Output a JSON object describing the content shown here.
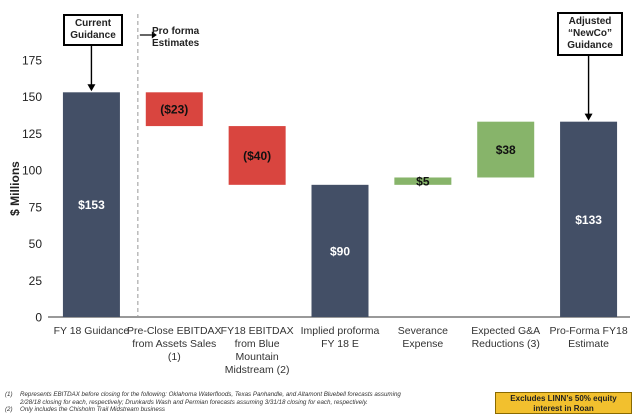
{
  "callouts": {
    "current": [
      "Current",
      "Guidance"
    ],
    "adjusted": [
      "Adjusted",
      "“NewCo”",
      "Guidance"
    ],
    "proforma": [
      "Pro forma",
      "Estimates"
    ]
  },
  "footnotes": [
    {
      "num": "(1)",
      "lines": [
        "Represents EBITDAX before closing for the following: Oklahoma Waterfloods, Texas Panhandle, and Altamont Bluebell forecasts assuming",
        "2/28/18 closing for each, respectively; Drunkards Wash and Permian forecasts assuming 3/31/18 closing for each, respectively."
      ]
    },
    {
      "num": "(2)",
      "lines": [
        "Only includes the Chisholm Trail Midstream business"
      ]
    }
  ],
  "badge": [
    "Excludes LINN’s 50% equity",
    "interest in Roan"
  ],
  "chart_data": {
    "type": "waterfall",
    "ylabel": "$ Millions",
    "ylim": [
      0,
      175
    ],
    "yticks": [
      0,
      25,
      50,
      75,
      100,
      125,
      150,
      175
    ],
    "grid": false,
    "colors": {
      "total": "#434f66",
      "decrease": "#d9453f",
      "increase": "#87b46a"
    },
    "bars": [
      {
        "category": [
          "FY 18 Guidance"
        ],
        "start": 0,
        "end": 153,
        "kind": "total",
        "label": "$153"
      },
      {
        "category": [
          "Pre-Close EBITDAX",
          "from Assets Sales",
          "(1)"
        ],
        "start": 153,
        "end": 130,
        "kind": "decrease",
        "label": "($23)"
      },
      {
        "category": [
          "FY18 EBITDAX",
          "from Blue",
          "Mountain",
          "Midstream (2)"
        ],
        "start": 130,
        "end": 90,
        "kind": "decrease",
        "label": "($40)"
      },
      {
        "category": [
          "Implied proforma",
          "FY 18 E"
        ],
        "start": 0,
        "end": 90,
        "kind": "total",
        "label": "$90"
      },
      {
        "category": [
          "Severance",
          "Expense"
        ],
        "start": 90,
        "end": 95,
        "kind": "increase",
        "label": "$5"
      },
      {
        "category": [
          "Expected G&A",
          "Reductions (3)"
        ],
        "start": 95,
        "end": 133,
        "kind": "increase",
        "label": "$38"
      },
      {
        "category": [
          "Pro-Forma FY18",
          "Estimate"
        ],
        "start": 0,
        "end": 133,
        "kind": "total",
        "label": "$133"
      }
    ]
  }
}
